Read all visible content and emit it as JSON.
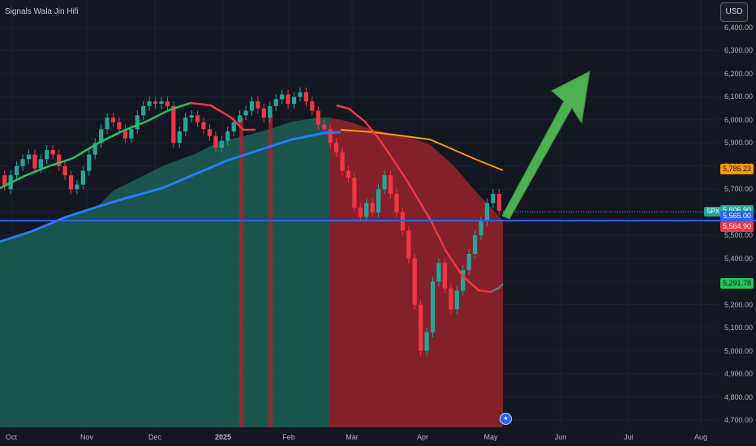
{
  "title": "Signals Wala Jin Hifi",
  "currency": "USD",
  "symbol": "SPX",
  "price_scale": [
    "6,400.00",
    "6,300.00",
    "6,200.00",
    "6,100.00",
    "6,000.00",
    "5,900.00",
    "5,800.00",
    "5,700.00",
    "5,600.00",
    "5,500.00",
    "5,400.00",
    "5,300.00",
    "5,200.00",
    "5,100.00",
    "5,000.00",
    "4,900.00",
    "4,800.00",
    "4,700.00"
  ],
  "time_axis": [
    "Oct",
    "Nov",
    "Dec",
    "2025",
    "Feb",
    "Mar",
    "Apr",
    "May",
    "Jun",
    "Jul",
    "Aug"
  ],
  "badges": [
    {
      "label": "5,786.23",
      "color": "#ff9800",
      "text_color": "#131722"
    },
    {
      "label": "5,606.90",
      "color": "#26a69a",
      "text_color": "#ffffff"
    },
    {
      "label": "5,565.00",
      "color": "#2962ff",
      "text_color": "#ffffff"
    },
    {
      "label": "5,564.90",
      "color": "#f23645",
      "text_color": "#ffffff"
    },
    {
      "label": "5,291.78",
      "color": "#22c55e",
      "text_color": "#131722"
    }
  ],
  "flag_icon": "us-flag-icon",
  "colors": {
    "up": "#26a69a",
    "down": "#f23645",
    "background": "#131722",
    "fast_ma_up": "#22c55e",
    "fast_ma_down": "#f23645",
    "slow_ma": "#2979ff",
    "long_ma": "#ff9800",
    "arrow": "#4caf50",
    "horizontal_line": "#2962ff"
  },
  "chart_data": {
    "type": "candlestick",
    "symbol": "SPX",
    "ylim": [
      4700,
      6450
    ],
    "x_labels": [
      "Oct",
      "Nov",
      "Dec",
      "2025",
      "Feb",
      "Mar",
      "Apr",
      "May",
      "Jun",
      "Jul",
      "Aug"
    ],
    "horizontal_line": 5565.0,
    "last_close": 5606.9,
    "indicators": [
      {
        "value": 5786.23,
        "color": "#ff9800"
      },
      {
        "value": 5565.0,
        "color": "#2962ff"
      },
      {
        "value": 5564.9,
        "color": "#f23645"
      },
      {
        "value": 5291.78,
        "color": "#22c55e"
      }
    ],
    "projection_arrow": {
      "from": "May",
      "to": "Jun",
      "from_value": 5600,
      "to_value": 6200
    },
    "candles_approx": [
      [
        5760,
        5715
      ],
      [
        5700,
        5760
      ],
      [
        5760,
        5800
      ],
      [
        5800,
        5830
      ],
      [
        5830,
        5850
      ],
      [
        5850,
        5790
      ],
      [
        5790,
        5830
      ],
      [
        5830,
        5870
      ],
      [
        5870,
        5850
      ],
      [
        5850,
        5800
      ],
      [
        5800,
        5760
      ],
      [
        5760,
        5700
      ],
      [
        5700,
        5720
      ],
      [
        5720,
        5780
      ],
      [
        5780,
        5850
      ],
      [
        5850,
        5900
      ],
      [
        5900,
        5960
      ],
      [
        5960,
        6010
      ],
      [
        6010,
        5990
      ],
      [
        5990,
        5960
      ],
      [
        5960,
        5920
      ],
      [
        5920,
        5960
      ],
      [
        5960,
        6020
      ],
      [
        6020,
        6060
      ],
      [
        6060,
        6080
      ],
      [
        6080,
        6070
      ],
      [
        6070,
        6080
      ],
      [
        6080,
        6060
      ],
      [
        6060,
        5900
      ],
      [
        5900,
        5950
      ],
      [
        5950,
        6010
      ],
      [
        6010,
        6020
      ],
      [
        6020,
        5990
      ],
      [
        5990,
        5960
      ],
      [
        5960,
        5930
      ],
      [
        5930,
        5880
      ],
      [
        5880,
        5910
      ],
      [
        5910,
        5950
      ],
      [
        5950,
        5990
      ],
      [
        5990,
        6020
      ],
      [
        6020,
        6040
      ],
      [
        6040,
        6080
      ],
      [
        6080,
        6050
      ],
      [
        6050,
        6010
      ],
      [
        6010,
        6060
      ],
      [
        6060,
        6090
      ],
      [
        6090,
        6110
      ],
      [
        6110,
        6070
      ],
      [
        6070,
        6100
      ],
      [
        6100,
        6120
      ],
      [
        6120,
        6080
      ],
      [
        6080,
        6040
      ],
      [
        6040,
        5980
      ],
      [
        5980,
        5960
      ],
      [
        5960,
        5900
      ],
      [
        5900,
        5860
      ],
      [
        5860,
        5780
      ],
      [
        5780,
        5750
      ],
      [
        5750,
        5620
      ],
      [
        5620,
        5580
      ],
      [
        5580,
        5640
      ],
      [
        5640,
        5600
      ],
      [
        5600,
        5700
      ],
      [
        5700,
        5760
      ],
      [
        5760,
        5680
      ],
      [
        5680,
        5600
      ],
      [
        5600,
        5520
      ],
      [
        5520,
        5400
      ],
      [
        5400,
        5200
      ],
      [
        5200,
        5000
      ],
      [
        5000,
        5080
      ],
      [
        5080,
        5300
      ],
      [
        5300,
        5380
      ],
      [
        5380,
        5270
      ],
      [
        5270,
        5180
      ],
      [
        5180,
        5260
      ],
      [
        5260,
        5350
      ],
      [
        5350,
        5420
      ],
      [
        5420,
        5500
      ],
      [
        5500,
        5560
      ],
      [
        5560,
        5640
      ],
      [
        5640,
        5680
      ],
      [
        5680,
        5606.9
      ]
    ]
  }
}
